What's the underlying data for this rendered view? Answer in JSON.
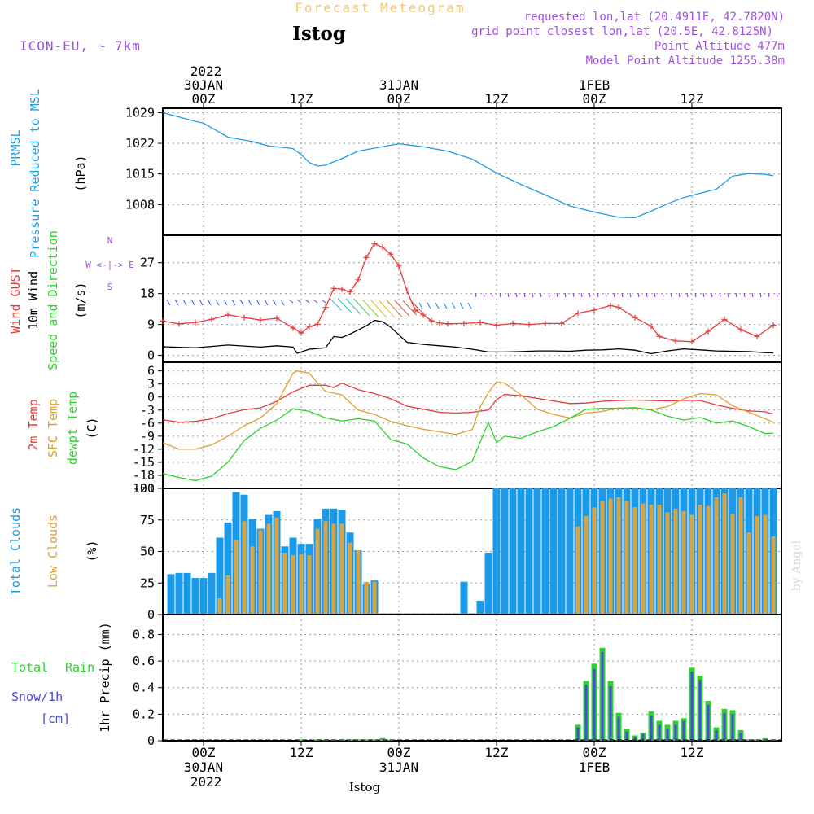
{
  "header": {
    "supertitle": "Forecast Meteogram",
    "station": "Istog",
    "model": "ICON-EU, ~ 7km",
    "requested": "requested lon,lat (20.4911E, 42.7820N)",
    "grid_point": "grid point closest lon,lat (20.5E, 42.8125N)",
    "point_altitude": "Point Altitude 477m",
    "model_altitude": "Model Point Altitude 1255.38m",
    "footer_station": "Istog",
    "watermark": "by Angel"
  },
  "time_axis": {
    "year": "2022",
    "days": [
      {
        "label": "30JAN",
        "at_hours": 0
      },
      {
        "label": "31JAN",
        "at_hours": 24
      },
      {
        "label": "1FEB",
        "at_hours": 48
      }
    ],
    "ticks": [
      {
        "label": "00Z",
        "at_hours": 0
      },
      {
        "label": "12Z",
        "at_hours": 12
      },
      {
        "label": "00Z",
        "at_hours": 24
      },
      {
        "label": "12Z",
        "at_hours": 36
      },
      {
        "label": "00Z",
        "at_hours": 48
      },
      {
        "label": "12Z",
        "at_hours": 60
      }
    ],
    "range_hours": [
      -5,
      71
    ]
  },
  "panel_labels": {
    "pressure": [
      "PRMSL",
      "Pressure Reduced to MSL",
      "(hPa)"
    ],
    "wind": [
      "Wind GUST",
      "10m Wind",
      "Speed and Direction",
      "(m/s)"
    ],
    "compass": [
      "N",
      "W <-|-> E",
      "S"
    ],
    "temp": [
      "2m Temp",
      "SFC Temp",
      "dewpt Temp",
      "(C)"
    ],
    "clouds": [
      "Total Clouds",
      "Low Clouds",
      "(%)"
    ],
    "precip_left": [
      "Total",
      "Rain",
      "Snow/1h",
      "[cm]"
    ],
    "precip_axis": "1hr Precip (mm)"
  },
  "colors": {
    "pressure": "#1e9ee6",
    "gust": "#e83a3a",
    "wind": "#000000",
    "sfc_temp": "#e0a030",
    "t2m": "#e83a3a",
    "dewpt": "#2bd42b",
    "total_clouds": "#1a9ae8",
    "low_clouds": "#d9a441",
    "rain": "#2bd42b",
    "snow": "#4a4ae0",
    "purple": "#a050e0",
    "header_orange": "#f0c878"
  },
  "chart_data": [
    {
      "type": "line",
      "panel": "pressure",
      "ylabel": "(hPa)",
      "yticks": [
        1008,
        1015,
        1022,
        1029
      ],
      "ylim": [
        1001,
        1030
      ],
      "series": [
        {
          "name": "PRMSL",
          "x": [
            -5,
            -1,
            0,
            3,
            6,
            8,
            11,
            12,
            13,
            14,
            15,
            17,
            19,
            21,
            24,
            27,
            30,
            33,
            36,
            39,
            42,
            45,
            48,
            51,
            53,
            55,
            57,
            59,
            61,
            63,
            65,
            67,
            69,
            70
          ],
          "values": [
            1029,
            1027,
            1026.6,
            1023.4,
            1022.4,
            1021.4,
            1020.8,
            1019.4,
            1017.6,
            1016.8,
            1017,
            1018.5,
            1020.2,
            1020.9,
            1021.9,
            1021.2,
            1020.2,
            1018.4,
            1015.2,
            1012.6,
            1010.2,
            1007.7,
            1006.3,
            1005.1,
            1005,
            1006.5,
            1008.2,
            1009.6,
            1010.6,
            1011.5,
            1014.5,
            1015.1,
            1014.9,
            1014.6
          ]
        }
      ]
    },
    {
      "type": "line",
      "panel": "wind",
      "ylabel": "(m/s)",
      "yticks": [
        0,
        9,
        18,
        27
      ],
      "ylim": [
        -2,
        35
      ],
      "series": [
        {
          "name": "Wind GUST",
          "x": [
            -5,
            -3,
            -1,
            1,
            3,
            5,
            7,
            9,
            11,
            12,
            13,
            14,
            15,
            16,
            17,
            18,
            19,
            20,
            21,
            22,
            23,
            24,
            25,
            26,
            27,
            28,
            29,
            30,
            32,
            34,
            36,
            38,
            40,
            42,
            44,
            46,
            48,
            50,
            51,
            53,
            55,
            56,
            58,
            60,
            62,
            64,
            66,
            68,
            70
          ],
          "values": [
            10,
            9.2,
            9.6,
            10.5,
            11.8,
            11,
            10.3,
            10.8,
            8,
            6.5,
            8.4,
            9.1,
            14,
            19.5,
            19.3,
            18.5,
            22,
            28.5,
            32.5,
            31.5,
            29.5,
            26,
            18.8,
            13.2,
            11.8,
            10.1,
            9.4,
            9.2,
            9.3,
            9.6,
            8.8,
            9.3,
            9,
            9.3,
            9.3,
            12.3,
            13.2,
            14.5,
            14,
            11,
            8.5,
            5.5,
            4.2,
            4,
            7,
            10.5,
            7.5,
            5.5,
            8.8
          ]
        },
        {
          "name": "10m Wind",
          "x": [
            -5,
            -1,
            3,
            7,
            9,
            11,
            11.5,
            13,
            15,
            16,
            17,
            18,
            20,
            21,
            22,
            23,
            24,
            25,
            27,
            29,
            31,
            33,
            35,
            37,
            39,
            41,
            43,
            45,
            47,
            49,
            51,
            53,
            55,
            57,
            59,
            61,
            63,
            65,
            67,
            69,
            70
          ],
          "values": [
            2.5,
            2.2,
            3,
            2.4,
            2.8,
            2.4,
            0.6,
            1.8,
            2.2,
            5.5,
            5.2,
            6.2,
            8.6,
            10.2,
            9.8,
            8.2,
            6,
            3.8,
            3.2,
            2.8,
            2.4,
            1.8,
            1,
            1,
            1.1,
            1.3,
            1.3,
            1.2,
            1.5,
            1.6,
            1.9,
            1.5,
            0.5,
            1.3,
            1.9,
            1.6,
            1.3,
            1.2,
            1.1,
            0.8,
            0.7
          ]
        }
      ]
    },
    {
      "type": "line",
      "panel": "temperature",
      "ylabel": "(C)",
      "yticks": [
        6,
        3,
        0,
        -3,
        -6,
        -9,
        -12,
        -15,
        -18,
        -21
      ],
      "ylim": [
        -21,
        8
      ],
      "series": [
        {
          "name": "2m Temp",
          "x": [
            -5,
            -3,
            -1,
            1,
            3,
            5,
            7,
            9,
            11,
            13,
            15,
            16,
            17,
            19,
            21,
            23,
            25,
            27,
            29,
            31,
            33,
            35,
            36,
            37,
            39,
            41,
            43,
            45,
            47,
            49,
            51,
            53,
            55,
            57,
            59,
            61,
            63,
            65,
            67,
            69,
            70
          ],
          "values": [
            -5.2,
            -5.8,
            -5.6,
            -5,
            -3.8,
            -2.9,
            -2.5,
            -1,
            1.2,
            2.7,
            2.7,
            2.2,
            3.2,
            1.7,
            0.8,
            -0.4,
            -2.1,
            -2.8,
            -3.5,
            -3.7,
            -3.5,
            -3,
            -0.6,
            0.6,
            0.3,
            -0.3,
            -0.9,
            -1.5,
            -1.4,
            -1,
            -0.8,
            -0.7,
            -0.8,
            -0.9,
            -0.8,
            -0.8,
            -1.8,
            -2.6,
            -3.2,
            -3.4,
            -3.9
          ]
        },
        {
          "name": "SFC Temp",
          "x": [
            -5,
            -3,
            -1,
            1,
            3,
            5,
            7,
            9,
            11,
            11.5,
            13,
            14,
            15,
            17,
            19,
            21,
            23,
            25,
            27,
            29,
            31,
            33,
            34,
            35,
            36,
            37,
            39,
            41,
            43,
            45,
            47,
            49,
            51,
            53,
            55,
            57,
            59,
            61,
            63,
            65,
            67,
            69,
            70
          ],
          "values": [
            -10.5,
            -12,
            -12,
            -11,
            -9,
            -6.6,
            -4.8,
            -1.5,
            5.5,
            6,
            5.5,
            3.2,
            1.3,
            0.5,
            -3,
            -4,
            -5.6,
            -6.6,
            -7.4,
            -8,
            -8.6,
            -7.5,
            -2.2,
            1,
            3.5,
            3.2,
            0.5,
            -2.8,
            -4,
            -4.8,
            -3.7,
            -3.3,
            -2.5,
            -2.6,
            -2.9,
            -2.2,
            -0.4,
            0.8,
            0.5,
            -2,
            -3.5,
            -5,
            -5.8
          ]
        },
        {
          "name": "dewpt Temp",
          "x": [
            -5,
            -3,
            -1,
            1,
            3,
            5,
            7,
            9,
            11,
            13,
            15,
            17,
            19,
            21,
            23,
            25,
            27,
            29,
            31,
            33,
            35,
            36,
            37,
            39,
            41,
            43,
            45,
            47,
            49,
            51,
            53,
            55,
            57,
            59,
            61,
            63,
            65,
            67,
            69,
            70
          ],
          "values": [
            -17.6,
            -18.5,
            -19.2,
            -18.2,
            -15,
            -10,
            -7.2,
            -5.3,
            -2.7,
            -3.3,
            -4.8,
            -5.5,
            -5,
            -5.5,
            -9.8,
            -10.8,
            -14,
            -16,
            -16.7,
            -14.8,
            -5.8,
            -10.5,
            -9,
            -9.5,
            -8,
            -6.8,
            -4.9,
            -2.8,
            -2.6,
            -2.6,
            -2.4,
            -3,
            -4.4,
            -5.3,
            -4.7,
            -6,
            -5.5,
            -6.8,
            -8.4,
            -8.3
          ]
        }
      ]
    },
    {
      "type": "bar",
      "panel": "clouds",
      "ylabel": "(%)",
      "yticks": [
        0,
        25,
        50,
        75,
        100
      ],
      "ylim": [
        0,
        100
      ],
      "x": [
        -4,
        -3,
        -2,
        -1,
        0,
        1,
        2,
        3,
        4,
        5,
        6,
        7,
        8,
        9,
        10,
        11,
        12,
        13,
        14,
        15,
        16,
        17,
        18,
        19,
        20,
        21,
        22,
        23,
        24,
        25,
        26,
        27,
        28,
        29,
        30,
        31,
        32,
        33,
        34,
        35,
        36,
        37,
        38,
        39,
        40,
        41,
        42,
        43,
        44,
        45,
        46,
        47,
        48,
        49,
        50,
        51,
        52,
        53,
        54,
        55,
        56,
        57,
        58,
        59,
        60,
        61,
        62,
        63,
        64,
        65,
        66,
        67,
        68,
        69,
        70
      ],
      "series": [
        {
          "name": "Total Clouds",
          "values": [
            32,
            33,
            33,
            29,
            29,
            33,
            61,
            73,
            97,
            95,
            76,
            68,
            79,
            82,
            54,
            61,
            56,
            56,
            76,
            84,
            84,
            83,
            65,
            51,
            24,
            27,
            0,
            0,
            0,
            0,
            0,
            0,
            0,
            0,
            0,
            1,
            26,
            1,
            11,
            49,
            100,
            100,
            100,
            100,
            100,
            100,
            100,
            100,
            100,
            100,
            100,
            100,
            100,
            100,
            100,
            100,
            100,
            100,
            100,
            100,
            100,
            100,
            100,
            100,
            100,
            100,
            100,
            100,
            100,
            100,
            100,
            100,
            100,
            100,
            100
          ]
        },
        {
          "name": "Low Clouds",
          "values": [
            0,
            0,
            0,
            0,
            0,
            0,
            13,
            31,
            59,
            74,
            54,
            67,
            72,
            77,
            49,
            47,
            48,
            47,
            68,
            74,
            72,
            72,
            57,
            51,
            26,
            26,
            0,
            0,
            0,
            0,
            0,
            0,
            0,
            0,
            0,
            0,
            0,
            0,
            0,
            0,
            0,
            0,
            0,
            0,
            0,
            0,
            0,
            0,
            0,
            0,
            70,
            78,
            85,
            90,
            92,
            93,
            90,
            85,
            88,
            87,
            87,
            81,
            84,
            82,
            79,
            87,
            86,
            93,
            96,
            80,
            93,
            65,
            78,
            79,
            62
          ]
        }
      ]
    },
    {
      "type": "bar",
      "panel": "precipitation",
      "ylabel": "1hr Precip (mm)",
      "yticks": [
        0,
        0.2,
        0.4,
        0.6,
        0.8
      ],
      "ylim": [
        0,
        0.95
      ],
      "x": [
        12,
        14,
        15,
        16,
        17,
        18,
        19,
        20,
        21,
        22,
        23,
        46,
        47,
        48,
        49,
        50,
        51,
        52,
        53,
        54,
        55,
        56,
        57,
        58,
        59,
        60,
        61,
        62,
        63,
        64,
        65,
        66,
        67,
        68,
        69,
        70
      ],
      "series": [
        {
          "name": "Total Rain",
          "values": [
            0.01,
            0.01,
            0.01,
            0.01,
            0.01,
            0.01,
            0.01,
            0.01,
            0.01,
            0.02,
            0.01,
            0.12,
            0.45,
            0.58,
            0.7,
            0.45,
            0.21,
            0.09,
            0.04,
            0.06,
            0.22,
            0.15,
            0.12,
            0.15,
            0.17,
            0.55,
            0.49,
            0.3,
            0.1,
            0.24,
            0.23,
            0.08,
            0.01,
            0.01,
            0.02,
            0.01
          ]
        },
        {
          "name": "Snow/1h",
          "values": [
            0,
            0,
            0,
            0,
            0,
            0,
            0,
            0,
            0,
            0,
            0,
            0.1,
            0.42,
            0.54,
            0.67,
            0.41,
            0.18,
            0.07,
            0.03,
            0.05,
            0.19,
            0.12,
            0.09,
            0.12,
            0.15,
            0.52,
            0.46,
            0.27,
            0.08,
            0.21,
            0.2,
            0.06,
            0,
            0,
            0,
            0
          ]
        }
      ]
    }
  ]
}
